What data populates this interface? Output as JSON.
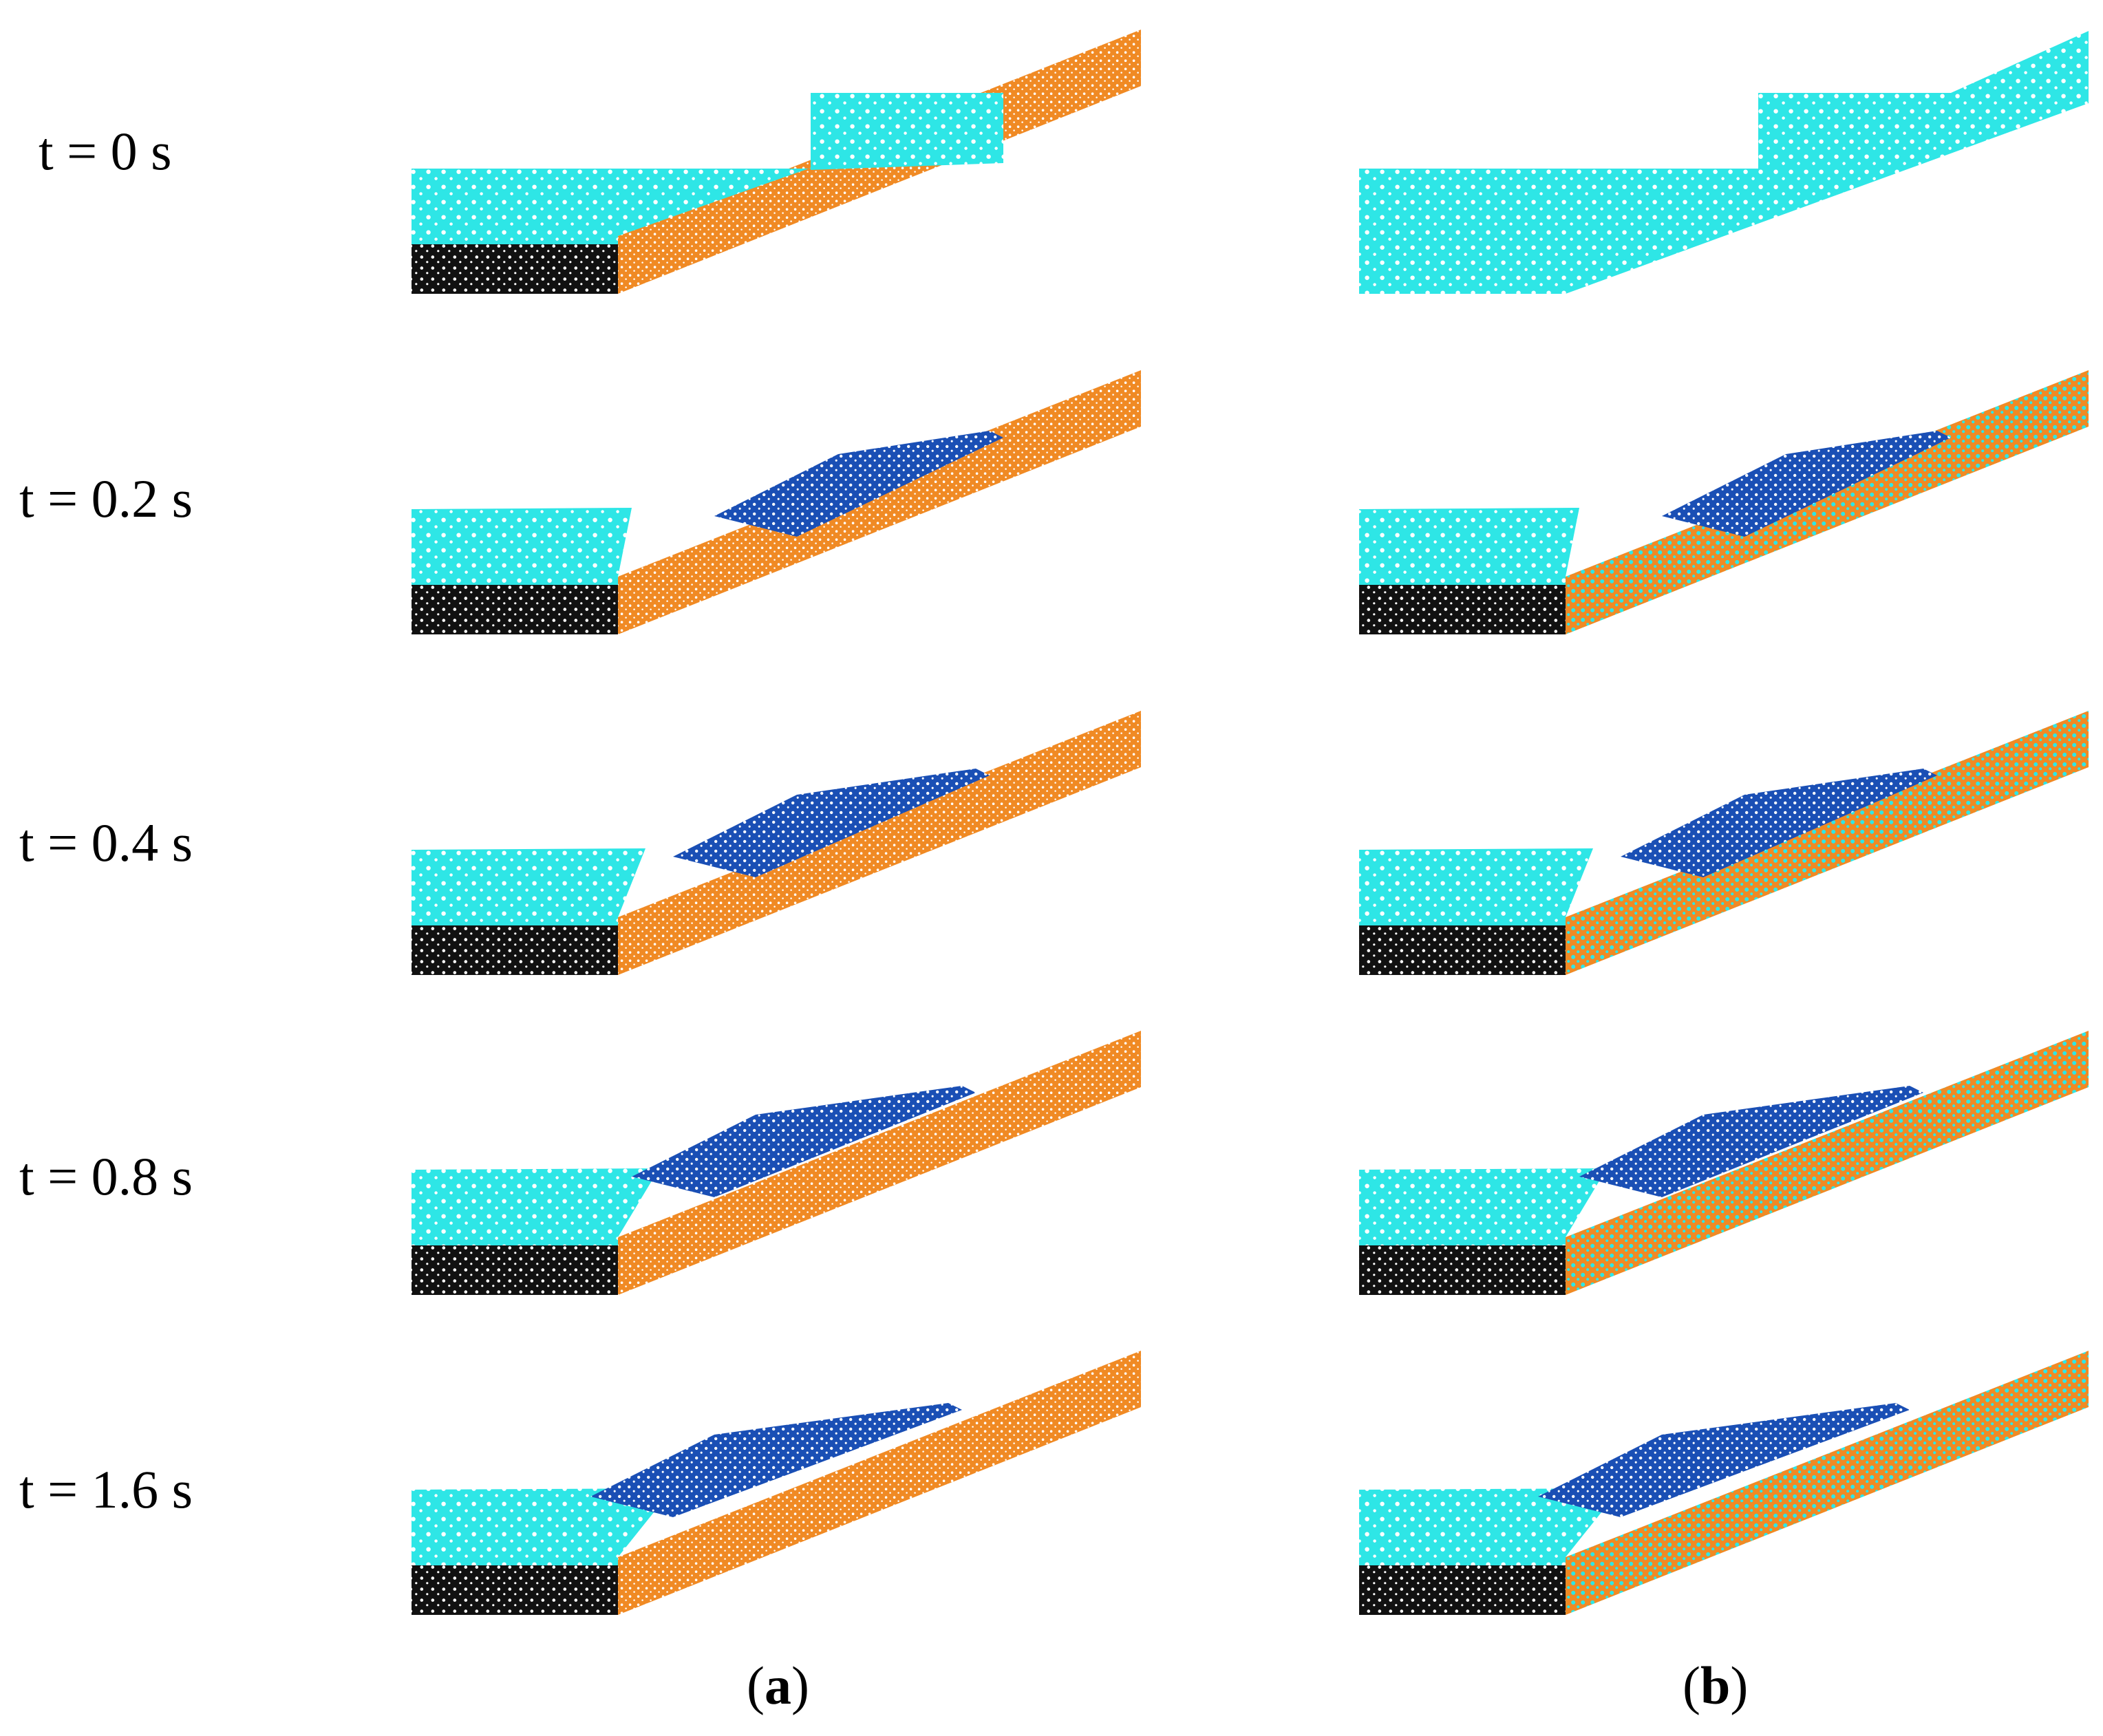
{
  "time_labels": [
    "t = 0 s",
    "t = 0.2 s",
    "t = 0.4 s",
    "t = 0.8 s",
    "t = 1.6 s"
  ],
  "panels": [
    {
      "id": "a",
      "prefix": "(",
      "letter": "a",
      "suffix": ")"
    },
    {
      "id": "b",
      "prefix": "(",
      "letter": "b",
      "suffix": ")"
    }
  ],
  "colors": {
    "water": "#2ee6e6",
    "wave": "#1a4fb5",
    "slope": "#f08a24",
    "bed": "#111111",
    "background": "#ffffff"
  }
}
